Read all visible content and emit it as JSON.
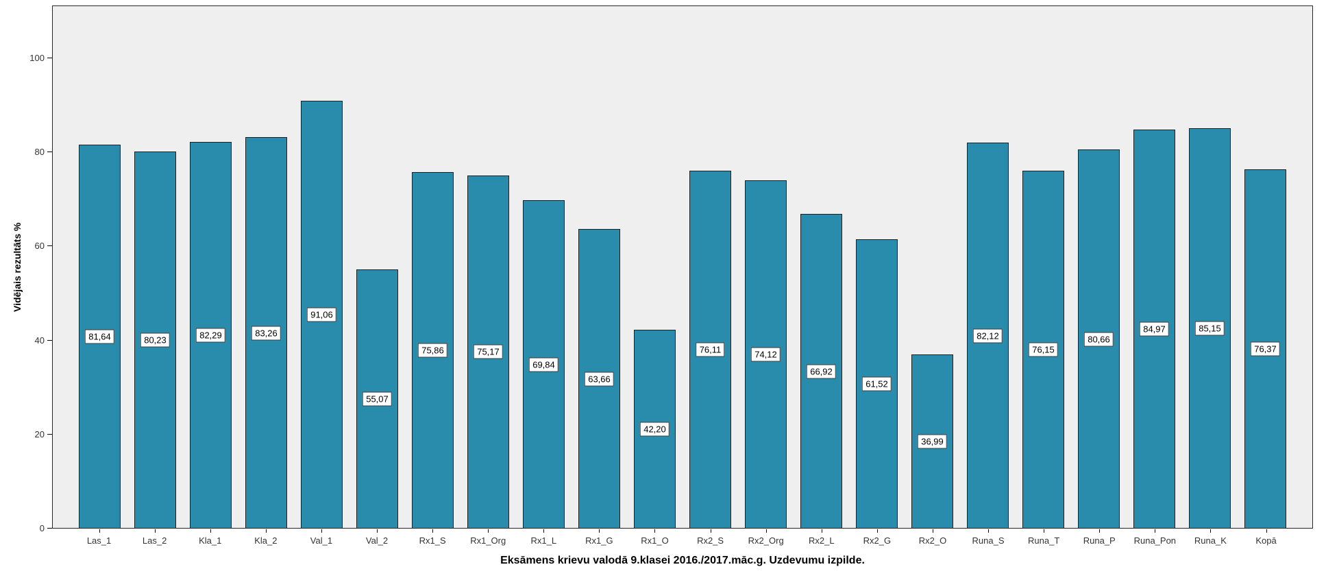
{
  "chart_data": {
    "type": "bar",
    "title": "",
    "xlabel": "Eksāmens krievu valodā 9.klasei 2016./2017.māc.g. Uzdevumu izpilde.",
    "ylabel": "Vidējais rezultāts %",
    "categories": [
      "Las_1",
      "Las_2",
      "Kla_1",
      "Kla_2",
      "Val_1",
      "Val_2",
      "Rx1_S",
      "Rx1_Org",
      "Rx1_L",
      "Rx1_G",
      "Rx1_O",
      "Rx2_S",
      "Rx2_Org",
      "Rx2_L",
      "Rx2_G",
      "Rx2_O",
      "Runa_S",
      "Runa_T",
      "Runa_P",
      "Runa_Pon",
      "Runa_K",
      "Kopā"
    ],
    "values": [
      81.64,
      80.23,
      82.29,
      83.26,
      91.06,
      55.07,
      75.86,
      75.17,
      69.84,
      63.66,
      42.2,
      76.11,
      74.12,
      66.92,
      61.52,
      36.99,
      82.12,
      76.15,
      80.66,
      84.97,
      85.15,
      76.37
    ],
    "value_labels": [
      "81,64",
      "80,23",
      "82,29",
      "83,26",
      "91,06",
      "55,07",
      "75,86",
      "75,17",
      "69,84",
      "63,66",
      "42,20",
      "76,11",
      "74,12",
      "66,92",
      "61,52",
      "36,99",
      "82,12",
      "76,15",
      "80,66",
      "84,97",
      "85,15",
      "76,37"
    ],
    "y_ticks": [
      0,
      20,
      40,
      60,
      80,
      100
    ],
    "ylim": [
      0,
      111.2
    ],
    "grid": false,
    "legend": "none",
    "value_label_position": "center-of-bar",
    "decimal_separator": ",",
    "colors": {
      "bar_fill": "#2A8CAC",
      "bar_border": "#1F1F1F",
      "plot_background": "#EFEFEF",
      "frame_border": "#262626",
      "label_box_background": "#FFFFFF",
      "label_box_border": "#3C3C3C",
      "tick_text": "#333333",
      "title_text": "#000000"
    }
  }
}
